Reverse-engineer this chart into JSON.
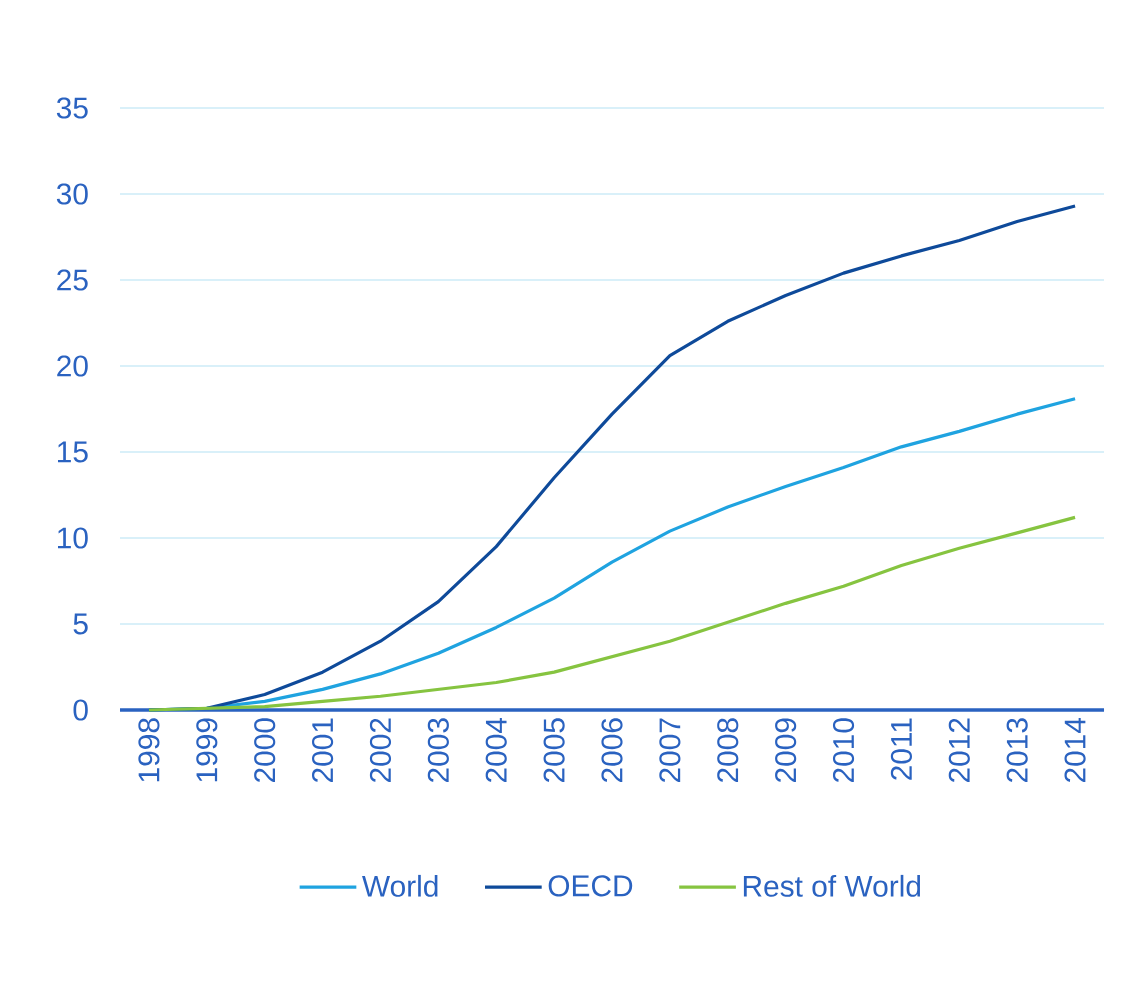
{
  "chart_data": {
    "type": "line",
    "categories": [
      "1998",
      "1999",
      "2000",
      "2001",
      "2002",
      "2003",
      "2004",
      "2005",
      "2006",
      "2007",
      "2008",
      "2009",
      "2010",
      "2011",
      "2012",
      "2013",
      "2014"
    ],
    "series": [
      {
        "name": "World",
        "color": "#1fa3e0",
        "values": [
          0,
          0.1,
          0.5,
          1.2,
          2.1,
          3.3,
          4.8,
          6.5,
          8.6,
          10.4,
          11.8,
          13.0,
          14.1,
          15.3,
          16.2,
          17.2,
          18.1
        ]
      },
      {
        "name": "OECD",
        "color": "#0e4a9a",
        "values": [
          0,
          0.1,
          0.9,
          2.2,
          4.0,
          6.3,
          9.5,
          13.5,
          17.2,
          20.6,
          22.6,
          24.1,
          25.4,
          26.4,
          27.3,
          28.4,
          29.3
        ]
      },
      {
        "name": "Rest of World",
        "color": "#86c440",
        "values": [
          0,
          0.1,
          0.2,
          0.5,
          0.8,
          1.2,
          1.6,
          2.2,
          3.1,
          4.0,
          5.1,
          6.2,
          7.2,
          8.4,
          9.4,
          10.3,
          11.2
        ]
      }
    ],
    "ylim": [
      0,
      35
    ],
    "yticks": [
      0,
      5,
      10,
      15,
      20,
      25,
      30,
      35
    ],
    "grid": "y",
    "legend": "bottom",
    "marker": "none",
    "line_style": "solid"
  }
}
